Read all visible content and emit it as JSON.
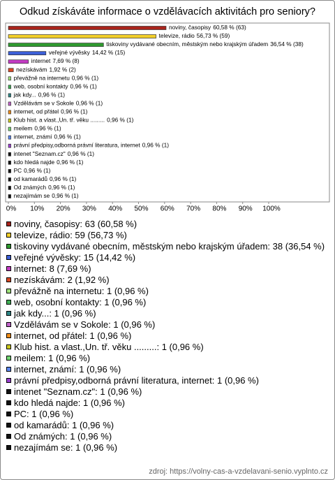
{
  "chart_data": {
    "type": "bar",
    "orientation": "horizontal",
    "title": "Odkud získáváte informace o vzdělávacích aktivitách pro seniory?",
    "categories": [
      "noviny, časopisy",
      "televize, rádio",
      "tiskoviny vydávané obecním, městským nebo krajským úřadem",
      "veřejné vývěsky",
      "internet",
      "nezískávám",
      "převážně na internetu",
      "web, osobní kontakty",
      "jak kdy...",
      "Vzdělávám se v Sokole",
      "internet, od přátel",
      "Klub hist. a vlast.,Un. tř. věku .........",
      "meilem",
      "internet, známí",
      "právní předpisy,odborná právní literatura, internet",
      "intenet \"Seznam.cz\"",
      "kdo hledá najde",
      "PC",
      "od kamarádů",
      "Od známých",
      "nezajímám se"
    ],
    "values": [
      60.58,
      56.73,
      36.54,
      14.42,
      7.69,
      1.92,
      0.96,
      0.96,
      0.96,
      0.96,
      0.96,
      0.96,
      0.96,
      0.96,
      0.96,
      0.96,
      0.96,
      0.96,
      0.96,
      0.96,
      0.96
    ],
    "value_labels": [
      "60,58 % (63)",
      "56,73 % (59)",
      "36,54 % (38)",
      "14,42 % (15)",
      "7,69 % (8)",
      "1,92 % (2)",
      "0,96 % (1)",
      "0,96 % (1)",
      "0,96 % (1)",
      "0,96 % (1)",
      "0,96 % (1)",
      "0,96 % (1)",
      "0,96 % (1)",
      "0,96 % (1)",
      "0,96 % (1)",
      "0,96 % (1)",
      "0,96 % (1)",
      "0,96 % (1)",
      "0,96 % (1)",
      "0,96 % (1)",
      "0,96 % (1)"
    ],
    "colors": [
      "#a8241c",
      "#f2cf2a",
      "#2f9a2f",
      "#3c5fd6",
      "#c43cc4",
      "#d84a26",
      "#9fe07a",
      "#3fae55",
      "#2e8585",
      "#c062c8",
      "#f08c18",
      "#c9c81e",
      "#72d672",
      "#5b86ef",
      "#9a3fd0",
      "#111111",
      "#111111",
      "#111111",
      "#111111",
      "#111111",
      "#111111"
    ],
    "legend": [
      "noviny, časopisy: 63 (60,58 %)",
      "televize, rádio: 59 (56,73 %)",
      "tiskoviny vydávané obecním, městským nebo krajským úřadem: 38 (36,54 %)",
      "veřejné vývěsky: 15 (14,42 %)",
      "internet: 8 (7,69 %)",
      "nezískávám: 2 (1,92 %)",
      "převážně na internetu: 1 (0,96 %)",
      "web, osobní kontakty: 1 (0,96 %)",
      "jak kdy...: 1 (0,96 %)",
      "Vzdělávám se v Sokole: 1 (0,96 %)",
      "internet, od přátel: 1 (0,96 %)",
      "Klub hist. a vlast.,Un. tř. věku .........: 1 (0,96 %)",
      "meilem: 1 (0,96 %)",
      "internet, známí: 1 (0,96 %)",
      "právní předpisy,odborná právní literatura, internet: 1 (0,96 %)",
      "intenet \"Seznam.cz\": 1 (0,96 %)",
      "kdo hledá najde: 1 (0,96 %)",
      "PC: 1 (0,96 %)",
      "od kamarádů: 1 (0,96 %)",
      "Od známých: 1 (0,96 %)",
      "nezajímám se: 1 (0,96 %)"
    ],
    "xlim": [
      0,
      100
    ],
    "xticks": [
      {
        "value": 0,
        "label": "0%"
      },
      {
        "value": 10,
        "label": "10%"
      },
      {
        "value": 20,
        "label": "20%"
      },
      {
        "value": 30,
        "label": "30%"
      },
      {
        "value": 40,
        "label": "40%"
      },
      {
        "value": 50,
        "label": "50%"
      },
      {
        "value": 60,
        "label": "60%"
      },
      {
        "value": 70,
        "label": "70%"
      },
      {
        "value": 80,
        "label": "80%"
      },
      {
        "value": 90,
        "label": "90%"
      },
      {
        "value": 100,
        "label": "100%"
      }
    ],
    "grid": false,
    "source": "zdroj: https://volny-cas-a-vzdelavani-senio.vyplnto.cz"
  }
}
